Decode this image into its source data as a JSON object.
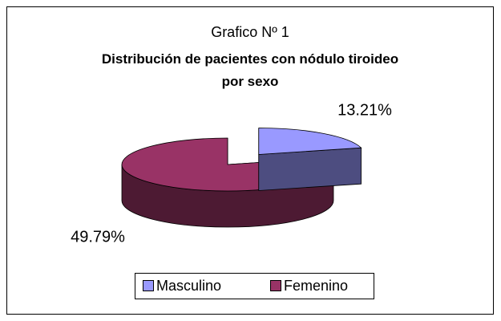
{
  "chart_data": {
    "type": "pie",
    "title": "Grafico Nº 1",
    "subtitle": "Distribución de pacientes con nódulo tiroideo por sexo",
    "categories": [
      "Masculino",
      "Femenino"
    ],
    "values": [
      13.21,
      49.79
    ],
    "value_labels": [
      "13.21%",
      "49.79%"
    ],
    "colors": [
      "#9999ff",
      "#993366"
    ],
    "legend": "bottom"
  }
}
